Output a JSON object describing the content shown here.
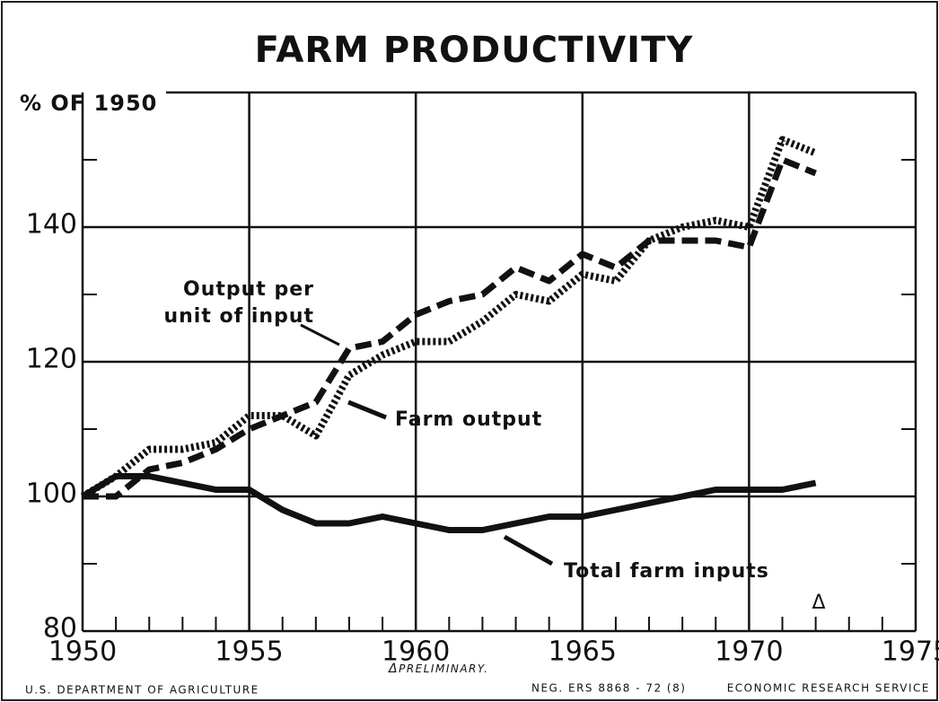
{
  "chart_data": {
    "type": "line",
    "title": "FARM PRODUCTIVITY",
    "ylabel": "% OF 1950",
    "x": [
      1950,
      1951,
      1952,
      1953,
      1954,
      1955,
      1956,
      1957,
      1958,
      1959,
      1960,
      1961,
      1962,
      1963,
      1964,
      1965,
      1966,
      1967,
      1968,
      1969,
      1970,
      1971,
      1972
    ],
    "series": [
      {
        "name": "Output per unit of input",
        "color": "#111111",
        "style": "dashed",
        "values": [
          100,
          100,
          104,
          105,
          107,
          110,
          112,
          114,
          122,
          123,
          127,
          129,
          130,
          134,
          132,
          136,
          134,
          138,
          138,
          138,
          137,
          150,
          148
        ]
      },
      {
        "name": "Farm output",
        "color": "#111111",
        "style": "dotted",
        "values": [
          100,
          103,
          107,
          107,
          108,
          112,
          112,
          109,
          118,
          121,
          123,
          123,
          126,
          130,
          129,
          133,
          132,
          138,
          140,
          141,
          140,
          153,
          151
        ]
      },
      {
        "name": "Total farm inputs",
        "color": "#111111",
        "style": "solid",
        "values": [
          100,
          103,
          103,
          102,
          101,
          101,
          98,
          96,
          96,
          97,
          96,
          95,
          95,
          96,
          97,
          97,
          98,
          99,
          100,
          101,
          101,
          101,
          102
        ]
      }
    ],
    "xlim": [
      1950,
      1975
    ],
    "xticks": [
      1950,
      1955,
      1960,
      1965,
      1970,
      1975
    ],
    "xminorticks": [
      1951,
      1952,
      1953,
      1954,
      1956,
      1957,
      1958,
      1959,
      1961,
      1962,
      1963,
      1964,
      1966,
      1967,
      1968,
      1969,
      1971,
      1972,
      1973,
      1974
    ],
    "ylim": [
      80,
      160
    ],
    "yticks": [
      80,
      100,
      120,
      140
    ],
    "yminorticks": [
      90,
      110,
      130,
      150
    ],
    "grid": true,
    "footnote": "PRELIMINARY.",
    "source_left": "U.S. DEPARTMENT OF AGRICULTURE",
    "source_mid": "NEG. ERS 8868 - 72 (8)",
    "source_right": "ECONOMIC RESEARCH SERVICE"
  }
}
